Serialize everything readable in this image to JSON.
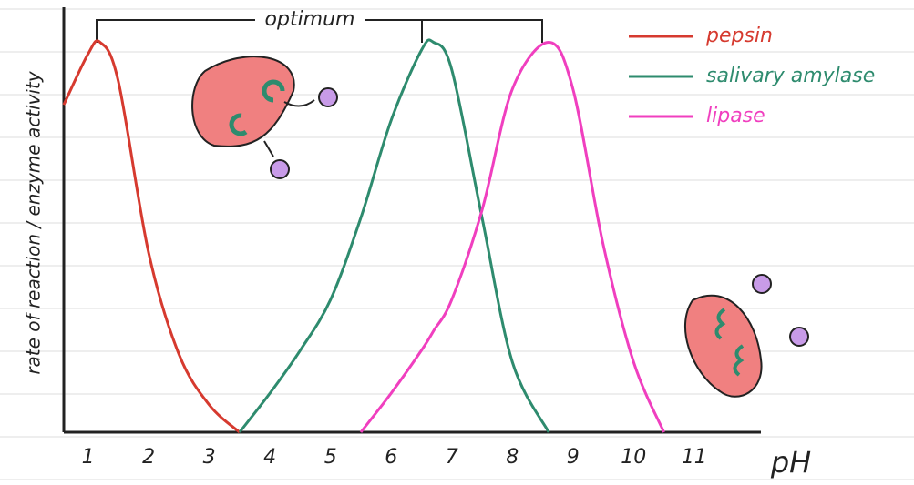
{
  "chart_data": {
    "type": "line",
    "y_label": "rate of reaction / enzyme activity",
    "x_label": "pH",
    "annotation": "optimum",
    "x": [
      0.6,
      1,
      1.2,
      1.5,
      2,
      2.5,
      3,
      3.5,
      4,
      4.5,
      5,
      5.5,
      6,
      6.5,
      6.7,
      7,
      7.5,
      8,
      8.6,
      9,
      9.5,
      10,
      10.5
    ],
    "series": [
      {
        "name": "pepsin",
        "color": "#d63a2f",
        "values": [
          84,
          97,
          100,
          90,
          46,
          20,
          7,
          0,
          null,
          null,
          null,
          null,
          null,
          null,
          null,
          null,
          null,
          null,
          null,
          null,
          null,
          null,
          null
        ]
      },
      {
        "name": "salivary amylase",
        "color": "#2e8b6e",
        "values": [
          null,
          null,
          null,
          null,
          null,
          null,
          null,
          0,
          10,
          21,
          34,
          55,
          80,
          98,
          100,
          93,
          55,
          18,
          0,
          null,
          null,
          null,
          null
        ]
      },
      {
        "name": "lipase",
        "color": "#f03fbf",
        "values": [
          null,
          null,
          null,
          null,
          null,
          null,
          null,
          null,
          null,
          null,
          null,
          0,
          10,
          21,
          26,
          34,
          57,
          88,
          100,
          88,
          48,
          18,
          0
        ]
      }
    ],
    "xlim": [
      0.6,
      12.1
    ],
    "xticks": [
      1,
      2,
      3,
      4,
      5,
      6,
      7,
      8,
      9,
      10,
      11
    ],
    "ylim": [
      0,
      109
    ],
    "legend": "top-right"
  }
}
